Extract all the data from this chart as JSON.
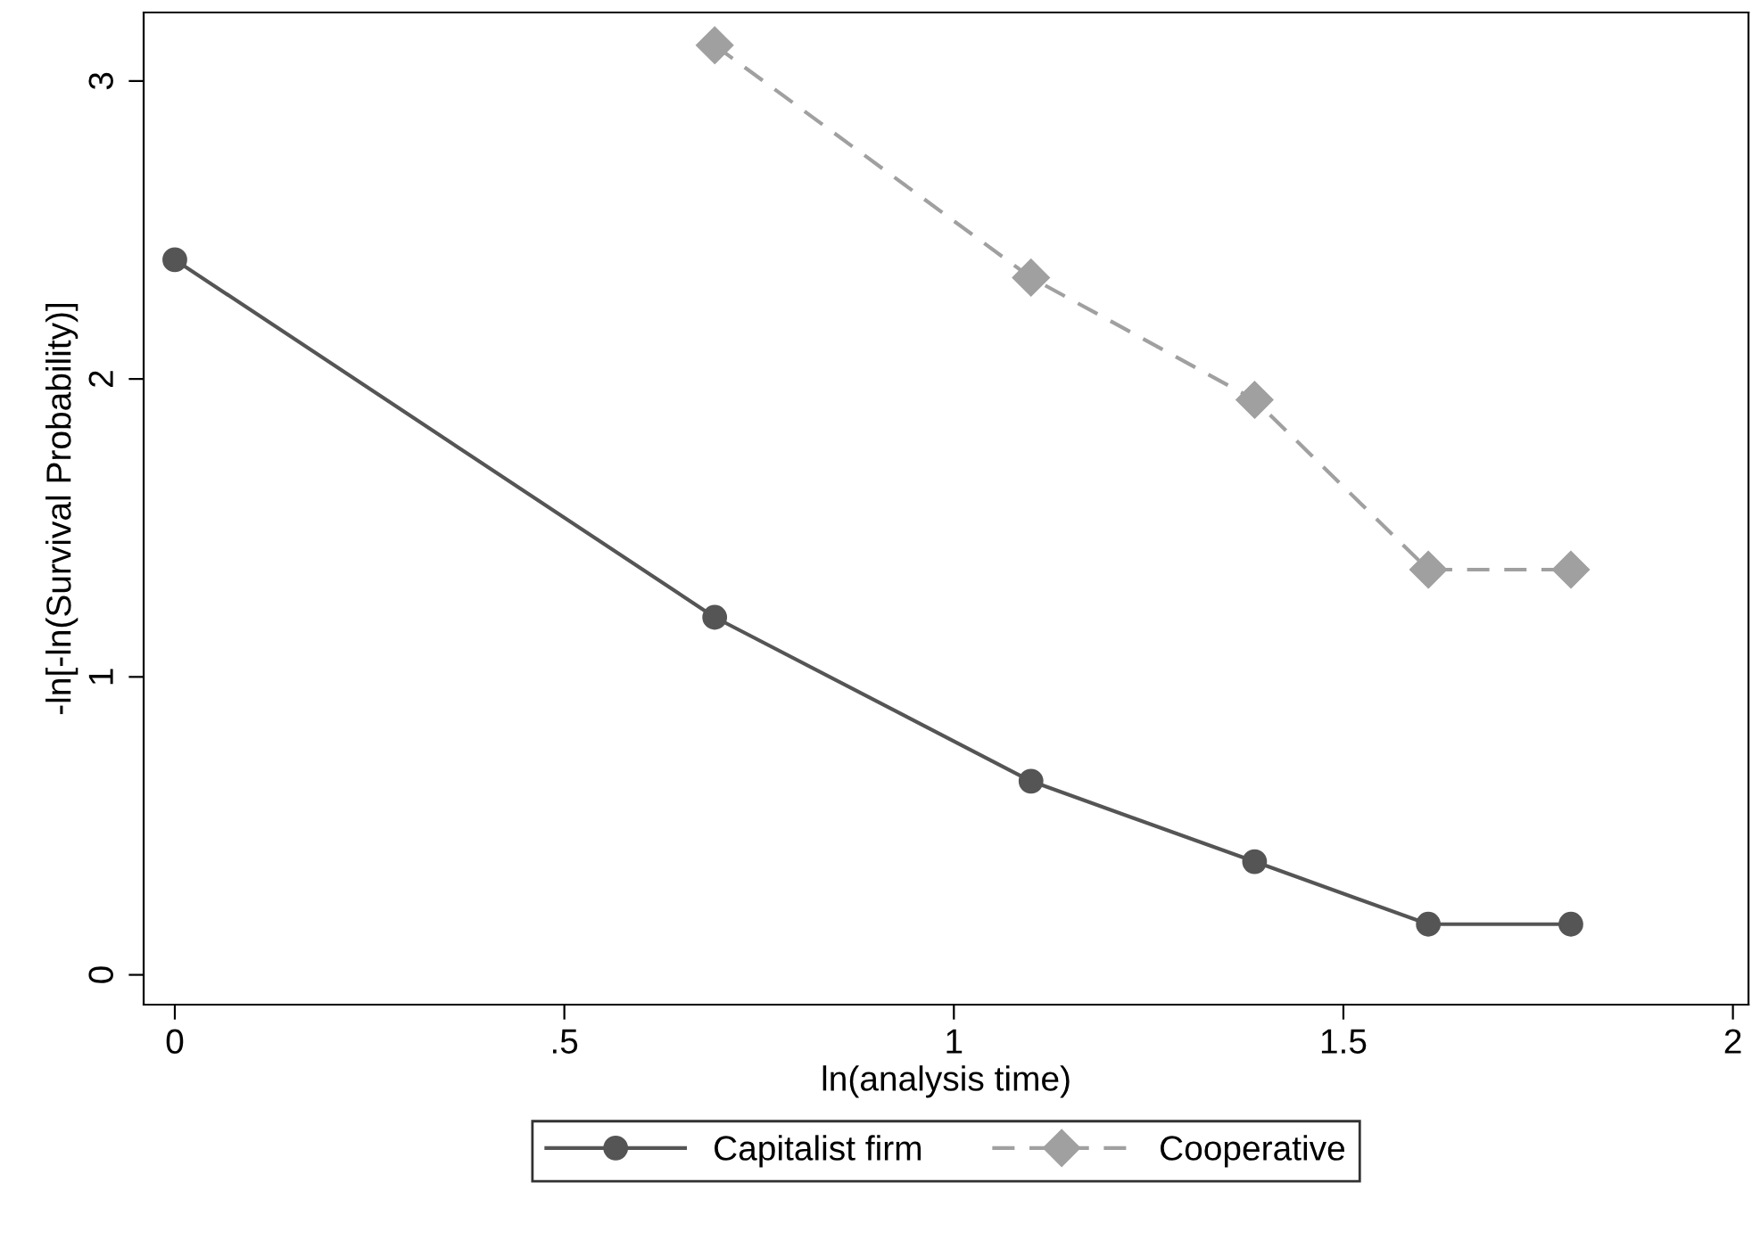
{
  "chart_data": {
    "type": "line",
    "xlabel": "ln(analysis time)",
    "ylabel": "-ln[-ln(Survival Probability)]",
    "series": [
      {
        "name": "Capitalist firm",
        "color": "#555555",
        "marker": "circle",
        "line_style": "solid",
        "x": [
          0,
          0.693,
          1.099,
          1.386,
          1.609,
          1.792
        ],
        "values": [
          2.4,
          1.2,
          0.65,
          0.38,
          0.17,
          0.17
        ]
      },
      {
        "name": "Cooperative",
        "color": "#a0a0a0",
        "marker": "diamond",
        "line_style": "dashed",
        "x": [
          0.693,
          1.099,
          1.386,
          1.609,
          1.792
        ],
        "values": [
          3.12,
          2.34,
          1.93,
          1.36,
          1.36
        ]
      }
    ],
    "xlim": [
      -0.04,
      2.02
    ],
    "xticks": [
      0,
      {
        "value": 0.5,
        "label": ".5"
      },
      1,
      1.5,
      2
    ],
    "ylim": [
      -0.1,
      3.23
    ],
    "yticks": [
      0,
      1,
      2,
      3
    ],
    "grid": false,
    "legend": "bottom"
  }
}
